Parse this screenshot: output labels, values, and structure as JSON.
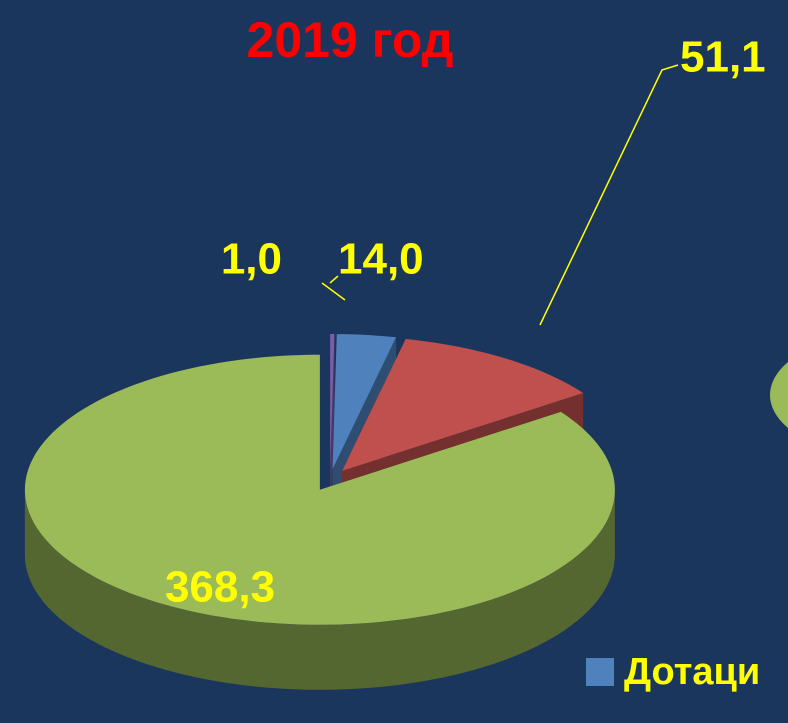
{
  "chart_data": {
    "type": "pie3d",
    "title": "2019 год",
    "categories": [
      null,
      "Дотаци",
      null,
      null
    ],
    "values": [
      1.0,
      14.0,
      51.1,
      368.3
    ],
    "value_labels": [
      "1,0",
      "14,0",
      "51,1",
      "368,3"
    ],
    "colors": [
      "#7b5ea7",
      "#4f81bd",
      "#c0504d",
      "#9bbb59"
    ]
  }
}
